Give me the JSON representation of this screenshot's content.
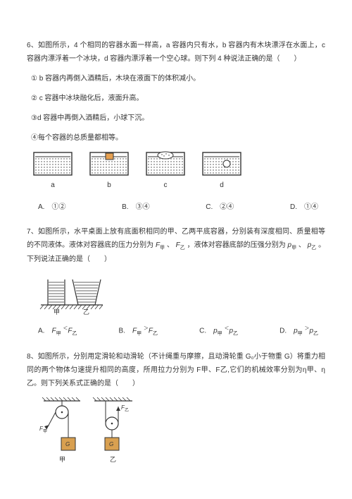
{
  "q6": {
    "stem": "6、如图所示，4 个相同的容器水面一样高，a 容器内只有水，b 容器内有木块漂浮在水面上，c 容器内漂浮着一个冰块，d 容器内漂浮着一个空心球。则下列 4 种说法正确的是（　　）",
    "s1": "① b 容器内再倒入酒精后，木块在液面下的体积减小。",
    "s2": "② c 容器中冰块融化后，液面升高。",
    "s3": "③d 容器中再倒入酒精后，小球下沉。",
    "s4": "④每个容器的总质量都相等。",
    "labels": [
      "a",
      "b",
      "c",
      "d"
    ],
    "optA": "A.　①②",
    "optB": "B.　③④",
    "optC": "C.　②④",
    "optD": "D.　①④"
  },
  "q7": {
    "stem": "7、如图所示，水平桌面上放有底面积相同的甲、乙两平底容器，分别装有深度相同、质量相等的不同液体。液体对容器底的压力分别为 F甲 、 F乙 ，液体对容器底部的压强分别为 p甲 、 p乙 。下列说法正确的是（　　）",
    "labels": [
      "甲",
      "乙"
    ],
    "optA": "A.",
    "optB": "B.",
    "optC": "C.",
    "optD": "D."
  },
  "q8": {
    "stem": "8、如图所示，分别用定滑轮和动滑轮（不计绳重与摩擦，且动滑轮重 G₀小于物重 G）将重力相同的两个物体匀速提升相同的高度，所用拉力分别为 F甲、F乙,它们的机械效率分别为η甲、η乙。则下列关系式正确的是（　　）",
    "labels": [
      "甲",
      "乙"
    ]
  }
}
